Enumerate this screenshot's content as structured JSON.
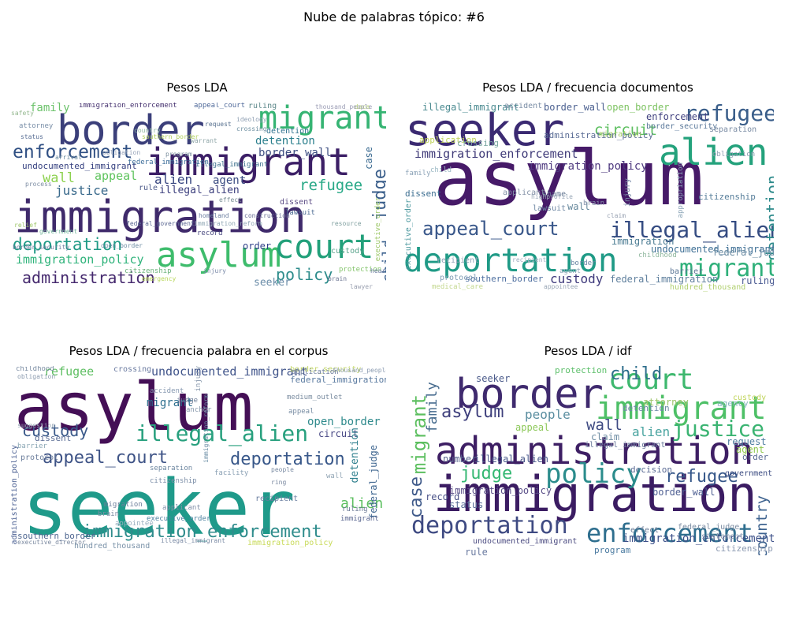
{
  "figure": {
    "title": "Nube de palabras tópico: #6"
  },
  "panels": [
    {
      "title": "Pesos LDA",
      "words": [
        {
          "t": "immigration",
          "c": "#3f2a6b"
        },
        {
          "t": "border",
          "c": "#3b3f7a"
        },
        {
          "t": "immigrant",
          "c": "#3c1f66"
        },
        {
          "t": "migrant",
          "c": "#36b473"
        },
        {
          "t": "asylum",
          "c": "#3ebc6c"
        },
        {
          "t": "court",
          "c": "#22a07a"
        },
        {
          "t": "enforcement",
          "c": "#2f4f83"
        },
        {
          "t": "deportation",
          "c": "#1f9a86"
        },
        {
          "t": "administration",
          "c": "#45296e"
        },
        {
          "t": "immigration_policy",
          "c": "#2fb37b"
        },
        {
          "t": "policy",
          "c": "#2d8c8b"
        },
        {
          "t": "refugee",
          "c": "#27a886"
        },
        {
          "t": "judge",
          "c": "#3a5e8a"
        },
        {
          "t": "wall",
          "c": "#8dd14f"
        },
        {
          "t": "justice",
          "c": "#3a6a8c"
        },
        {
          "t": "appeal",
          "c": "#5fc45e"
        },
        {
          "t": "alien",
          "c": "#35437e"
        },
        {
          "t": "agent",
          "c": "#3a4b82"
        },
        {
          "t": "illegal_alien",
          "c": "#3a3d7c"
        },
        {
          "t": "undocumented_immigrant",
          "c": "#343f7f"
        },
        {
          "t": "border_wall",
          "c": "#3e4f82"
        },
        {
          "t": "detention",
          "c": "#2b7f8d"
        },
        {
          "t": "child",
          "c": "#3a5f8d"
        },
        {
          "t": "seeker",
          "c": "#6a8ca8"
        },
        {
          "t": "family",
          "c": "#6bc26a"
        },
        {
          "t": "immigration_enforcement",
          "c": "#44306e"
        },
        {
          "t": "order",
          "c": "#30408a"
        },
        {
          "t": "case",
          "c": "#3a6a90"
        },
        {
          "t": "appeal_court",
          "c": "#506a9a"
        },
        {
          "t": "detention",
          "c": "#2b6f8c"
        },
        {
          "t": "federal_immigration",
          "c": "#3d6e9a"
        },
        {
          "t": "illegal_immigrant",
          "c": "#40728f"
        },
        {
          "t": "dissent",
          "c": "#5c4d86"
        },
        {
          "t": "rule",
          "c": "#4d5a8a"
        },
        {
          "t": "ruling",
          "c": "#5f8a8c"
        },
        {
          "t": "lawsuit",
          "c": "#4b6a92"
        },
        {
          "t": "record",
          "c": "#4a4a80"
        },
        {
          "t": "custody",
          "c": "#5aa48c"
        },
        {
          "t": "protection",
          "c": "#86c56e"
        },
        {
          "t": "citizenship",
          "c": "#6ab27a"
        },
        {
          "t": "attorney",
          "c": "#7a8fa8"
        },
        {
          "t": "government",
          "c": "#7ab9a0"
        },
        {
          "t": "federal_government",
          "c": "#5e6a94"
        },
        {
          "t": "construction",
          "c": "#6a6f96"
        },
        {
          "t": "request",
          "c": "#58718f"
        },
        {
          "t": "crossing",
          "c": "#6c8ea0"
        },
        {
          "t": "southern_border",
          "c": "#b0cf5a"
        },
        {
          "t": "status",
          "c": "#5a6f95"
        },
        {
          "t": "program",
          "c": "#7b8f9f"
        },
        {
          "t": "executive_order",
          "c": "#9fc86a"
        },
        {
          "t": "country",
          "c": "#8fb9a0"
        },
        {
          "t": "open_border",
          "c": "#6f8ea5"
        },
        {
          "t": "hearing",
          "c": "#6a7aa0"
        },
        {
          "t": "injury",
          "c": "#7a8aa8"
        },
        {
          "t": "safety",
          "c": "#94b88f"
        },
        {
          "t": "relief",
          "c": "#9ec66a"
        },
        {
          "t": "homeland",
          "c": "#6c7fa0"
        },
        {
          "t": "brain",
          "c": "#6f7894"
        },
        {
          "t": "arrival",
          "c": "#6a8a9f"
        },
        {
          "t": "effect",
          "c": "#7a8f96"
        },
        {
          "t": "resource",
          "c": "#80a0a0"
        },
        {
          "t": "daca",
          "c": "#b5d36c"
        },
        {
          "t": "thousand_people",
          "c": "#9a9cb4"
        },
        {
          "t": "emergency",
          "c": "#b8d65a"
        },
        {
          "t": "immigration_reform",
          "c": "#8fa6b4"
        },
        {
          "t": "border_security",
          "c": "#6e7ea0"
        },
        {
          "t": "lawyer",
          "c": "#9aa0b0"
        },
        {
          "t": "process",
          "c": "#7e8ea4"
        },
        {
          "t": "warrant",
          "c": "#8fa6a8"
        },
        {
          "t": "ideology",
          "c": "#90a0b4"
        },
        {
          "t": "obligation",
          "c": "#9aa6ba"
        }
      ]
    },
    {
      "title": "Pesos LDA / frecuencia documentos",
      "words": [
        {
          "t": "asylum",
          "c": "#461a68"
        },
        {
          "t": "seeker",
          "c": "#3b2a72"
        },
        {
          "t": "alien",
          "c": "#24a27c"
        },
        {
          "t": "deportation",
          "c": "#1f9a86"
        },
        {
          "t": "refugee",
          "c": "#3a5e8a"
        },
        {
          "t": "illegal_alien",
          "c": "#354c82"
        },
        {
          "t": "appeal_court",
          "c": "#39578a"
        },
        {
          "t": "migrant",
          "c": "#2fb07a"
        },
        {
          "t": "immigration_enforcement",
          "c": "#3f3a78"
        },
        {
          "t": "immigration_policy",
          "c": "#4f3a80"
        },
        {
          "t": "detention",
          "c": "#2d8a8b"
        },
        {
          "t": "circuit",
          "c": "#5cbf5f"
        },
        {
          "t": "custody",
          "c": "#3f3a7c"
        },
        {
          "t": "enforcement",
          "c": "#40407f"
        },
        {
          "t": "illegal_immigrant",
          "c": "#4a8a90"
        },
        {
          "t": "border_wall",
          "c": "#4a5f8f"
        },
        {
          "t": "immigration",
          "c": "#4a7b92"
        },
        {
          "t": "undocumented_immigrant",
          "c": "#3e6f95"
        },
        {
          "t": "federal_immigration",
          "c": "#60809e"
        },
        {
          "t": "southern_border",
          "c": "#4e6fa0"
        },
        {
          "t": "dissent",
          "c": "#3b6d90"
        },
        {
          "t": "executive_order",
          "c": "#4f9aa0"
        },
        {
          "t": "federal_judge",
          "c": "#6e8ea4"
        },
        {
          "t": "ruling",
          "c": "#4a5a92"
        },
        {
          "t": "open_border",
          "c": "#7cc260"
        },
        {
          "t": "wall",
          "c": "#66889c"
        },
        {
          "t": "citizenship",
          "c": "#577e9a"
        },
        {
          "t": "administration_policy",
          "c": "#5a6c95"
        },
        {
          "t": "border_security",
          "c": "#5a789a"
        },
        {
          "t": "application",
          "c": "#c0d45c"
        },
        {
          "t": "crossing",
          "c": "#7aa6a0"
        },
        {
          "t": "migration",
          "c": "#a4cc66"
        },
        {
          "t": "accident",
          "c": "#7b8ea6"
        },
        {
          "t": "applicant",
          "c": "#8290a6"
        },
        {
          "t": "recipient",
          "c": "#8fa0b4"
        },
        {
          "t": "protocol",
          "c": "#7f9cb4"
        },
        {
          "t": "shame",
          "c": "#6a7c96"
        },
        {
          "t": "lawsuit",
          "c": "#6f88a4"
        },
        {
          "t": "barrier",
          "c": "#5a7494"
        },
        {
          "t": "childhood",
          "c": "#8fb79e"
        },
        {
          "t": "hundred_thousand",
          "c": "#b0cf6e"
        },
        {
          "t": "separation",
          "c": "#7a8ca4"
        },
        {
          "t": "obligation",
          "c": "#8a9cb0"
        },
        {
          "t": "injury",
          "c": "#7a8aa8"
        },
        {
          "t": "appropriation",
          "c": "#8aa4b6"
        },
        {
          "t": "medical_care",
          "c": "#c4d890"
        },
        {
          "t": "appointee",
          "c": "#9aa6b6"
        },
        {
          "t": "border",
          "c": "#6a86a4"
        },
        {
          "t": "family",
          "c": "#8ea4b8"
        },
        {
          "t": "child",
          "c": "#9bb8c4"
        },
        {
          "t": "agent",
          "c": "#8fa6b8"
        },
        {
          "t": "brain",
          "c": "#8c98b0"
        },
        {
          "t": "claim",
          "c": "#9aa4b4"
        },
        {
          "t": "highprofile",
          "c": "#9aa8b8"
        },
        {
          "t": "recipient",
          "c": "#a2aec0"
        }
      ]
    },
    {
      "title": "Pesos LDA / frecuencia palabra en el corpus",
      "words": [
        {
          "t": "seeker",
          "c": "#1f9a8a"
        },
        {
          "t": "asylum",
          "c": "#440f56"
        },
        {
          "t": "illegal_alien",
          "c": "#28a07e"
        },
        {
          "t": "appeal_court",
          "c": "#3e5386"
        },
        {
          "t": "deportation",
          "c": "#39588a"
        },
        {
          "t": "immigration_enforcement",
          "c": "#2f8c8c"
        },
        {
          "t": "custody",
          "c": "#3b5a8a"
        },
        {
          "t": "alien",
          "c": "#5cbf5f"
        },
        {
          "t": "refugee",
          "c": "#5fbf63"
        },
        {
          "t": "undocumented_immigrant",
          "c": "#40548a"
        },
        {
          "t": "migrant",
          "c": "#2a6d8d"
        },
        {
          "t": "open_border",
          "c": "#2f8a8c"
        },
        {
          "t": "circuit",
          "c": "#4a4a86"
        },
        {
          "t": "detention",
          "c": "#2e7f8d"
        },
        {
          "t": "federal_judge",
          "c": "#3f6690"
        },
        {
          "t": "administration_policy",
          "c": "#4a5f92"
        },
        {
          "t": "southern_border",
          "c": "#4e6690"
        },
        {
          "t": "dissent",
          "c": "#5a6c94"
        },
        {
          "t": "crossing",
          "c": "#6a7aa0"
        },
        {
          "t": "federal_immigration",
          "c": "#5a7aa0"
        },
        {
          "t": "hundred_thousand",
          "c": "#7a92a8"
        },
        {
          "t": "executive_order",
          "c": "#4d82a0"
        },
        {
          "t": "immigration_policy",
          "c": "#c8da58"
        },
        {
          "t": "border_security",
          "c": "#c4d86a"
        },
        {
          "t": "immigration_reform",
          "c": "#6a8ca4"
        },
        {
          "t": "protocol",
          "c": "#6c7e9c"
        },
        {
          "t": "separation",
          "c": "#6d86a0"
        },
        {
          "t": "citizenship",
          "c": "#7d8fa8"
        },
        {
          "t": "recipient",
          "c": "#6a7ea0"
        },
        {
          "t": "barrier",
          "c": "#8aa6b4"
        },
        {
          "t": "childhood",
          "c": "#7c8ea4"
        },
        {
          "t": "obligation",
          "c": "#8c9cb0"
        },
        {
          "t": "application",
          "c": "#6a7a9a"
        },
        {
          "t": "accident",
          "c": "#8698b0"
        },
        {
          "t": "medium_outlet",
          "c": "#7a8ca0"
        },
        {
          "t": "facility",
          "c": "#8aa0b4"
        },
        {
          "t": "injury",
          "c": "#8898ac"
        },
        {
          "t": "immigrant",
          "c": "#5a6690"
        },
        {
          "t": "ruling",
          "c": "#6a7894"
        },
        {
          "t": "migration",
          "c": "#6f809c"
        },
        {
          "t": "brain",
          "c": "#7e8ca4"
        },
        {
          "t": "applicant",
          "c": "#8090a8"
        },
        {
          "t": "appointee",
          "c": "#9ab0c0"
        },
        {
          "t": "appeal",
          "c": "#7a8ea4"
        },
        {
          "t": "judge",
          "c": "#6e7e98"
        },
        {
          "t": "anchor",
          "c": "#8898ac"
        },
        {
          "t": "wall",
          "c": "#90a4b4"
        },
        {
          "t": "thousand_people",
          "c": "#8a9ab0"
        },
        {
          "t": "suggestion",
          "c": "#9aaab8"
        },
        {
          "t": "executive_director",
          "c": "#7c8aa0"
        },
        {
          "t": "ring",
          "c": "#7a88a0"
        },
        {
          "t": "people",
          "c": "#7c8ca4"
        },
        {
          "t": "illegal_immigrant",
          "c": "#7a8aa4"
        }
      ]
    },
    {
      "title": "Pesos LDA / idf",
      "words": [
        {
          "t": "immigration",
          "c": "#3b1c62"
        },
        {
          "t": "administration",
          "c": "#3e1f64"
        },
        {
          "t": "border",
          "c": "#3f2a6e"
        },
        {
          "t": "immigrant",
          "c": "#4ec067"
        },
        {
          "t": "court",
          "c": "#3eb86e"
        },
        {
          "t": "enforcement",
          "c": "#2e6e8e"
        },
        {
          "t": "policy",
          "c": "#2b8c8c"
        },
        {
          "t": "deportation",
          "c": "#3e4a82"
        },
        {
          "t": "migrant",
          "c": "#5cbf5f"
        },
        {
          "t": "justice",
          "c": "#3bb472"
        },
        {
          "t": "judge",
          "c": "#35b873"
        },
        {
          "t": "asylum",
          "c": "#3e3f7c"
        },
        {
          "t": "refugee",
          "c": "#37588a"
        },
        {
          "t": "case",
          "c": "#3f5a8a"
        },
        {
          "t": "family",
          "c": "#4a6e90"
        },
        {
          "t": "child",
          "c": "#2e6e8c"
        },
        {
          "t": "wall",
          "c": "#3e4a82"
        },
        {
          "t": "people",
          "c": "#5a8ea0"
        },
        {
          "t": "alien",
          "c": "#4aa4a0"
        },
        {
          "t": "country",
          "c": "#3f6490"
        },
        {
          "t": "government",
          "c": "#3a4a80"
        },
        {
          "t": "immigration_enforcement",
          "c": "#3b4f88"
        },
        {
          "t": "undocumented_immigrant",
          "c": "#4a4a80"
        },
        {
          "t": "illegal_alien",
          "c": "#4a5a8c"
        },
        {
          "t": "immigration_policy",
          "c": "#5a4f88"
        },
        {
          "t": "border_wall",
          "c": "#4e5f92"
        },
        {
          "t": "appeal",
          "c": "#8dc85a"
        },
        {
          "t": "agent",
          "c": "#8fc84e"
        },
        {
          "t": "order",
          "c": "#5a6b95"
        },
        {
          "t": "program",
          "c": "#4a7aa0"
        },
        {
          "t": "decision",
          "c": "#5a6a94"
        },
        {
          "t": "number",
          "c": "#5a6690"
        },
        {
          "t": "record",
          "c": "#4a5288"
        },
        {
          "t": "status",
          "c": "#5a6e98"
        },
        {
          "t": "rule",
          "c": "#6a7aa0"
        },
        {
          "t": "claim",
          "c": "#6f8ea4"
        },
        {
          "t": "request",
          "c": "#4f7ea0"
        },
        {
          "t": "seeker",
          "c": "#4a5a8a"
        },
        {
          "t": "protection",
          "c": "#5cbf6a"
        },
        {
          "t": "detention",
          "c": "#6c8aa4"
        },
        {
          "t": "attorney",
          "c": "#9ec46a"
        },
        {
          "t": "agency",
          "c": "#88b4c0"
        },
        {
          "t": "illegal_immigrant",
          "c": "#6a7a9c"
        },
        {
          "t": "effect",
          "c": "#6a7c98"
        },
        {
          "t": "federal_judge",
          "c": "#7e8ea4"
        },
        {
          "t": "custody",
          "c": "#c0d45a"
        },
        {
          "t": "statement",
          "c": "#8a9ab0"
        },
        {
          "t": "citizenship",
          "c": "#8a98b0"
        }
      ]
    }
  ]
}
